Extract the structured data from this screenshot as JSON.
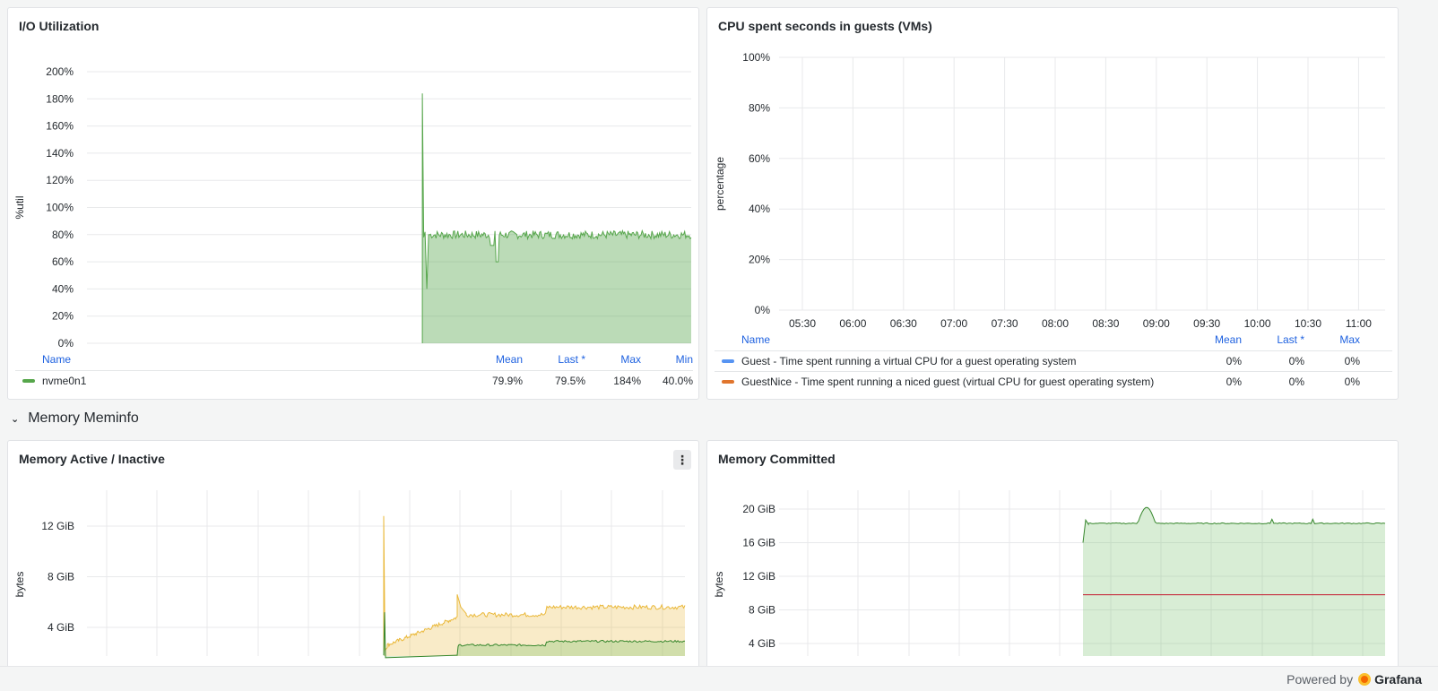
{
  "panels": {
    "io": {
      "title": "I/O Utilization",
      "ylabel": "%util",
      "color": "#56a64b",
      "legend": {
        "headers": {
          "name": "Name",
          "mean": "Mean",
          "last": "Last *",
          "max": "Max",
          "min": "Min"
        },
        "rows": [
          {
            "name": "nvme0n1",
            "mean": "79.9%",
            "last": "79.5%",
            "max": "184%",
            "min": "40.0%"
          }
        ]
      }
    },
    "cpu": {
      "title": "CPU spent seconds in guests (VMs)",
      "ylabel": "percentage",
      "legend": {
        "headers": {
          "name": "Name",
          "mean": "Mean",
          "last": "Last *",
          "max": "Max"
        },
        "rows": [
          {
            "name": "Guest - Time spent running a virtual CPU for a guest operating system",
            "mean": "0%",
            "last": "0%",
            "max": "0%",
            "color": "#5794f2"
          },
          {
            "name": "GuestNice - Time spent running a niced guest (virtual CPU for guest operating system)",
            "mean": "0%",
            "last": "0%",
            "max": "0%",
            "color": "#e0752d"
          }
        ]
      }
    },
    "mem_active": {
      "title": "Memory Active / Inactive",
      "ylabel": "bytes",
      "menu_glyph": "⋮"
    },
    "mem_committed": {
      "title": "Memory Committed",
      "ylabel": "bytes"
    }
  },
  "row": {
    "title": "Memory Meminfo",
    "chevron": "⌄"
  },
  "footer": {
    "powered": "Powered by",
    "brand": "Grafana"
  },
  "chart_data": [
    {
      "type": "area",
      "title": "I/O Utilization",
      "ylabel": "%util",
      "ylim": [
        0,
        200
      ],
      "yticks": [
        "0%",
        "20%",
        "40%",
        "60%",
        "80%",
        "100%",
        "120%",
        "140%",
        "160%",
        "180%",
        "200%"
      ],
      "series": [
        {
          "name": "nvme0n1",
          "color": "#56a64b",
          "start_fraction": 0.555,
          "spike": 184,
          "min": 40,
          "mean": 79.9,
          "last": 79.5
        }
      ]
    },
    {
      "type": "line",
      "title": "CPU spent seconds in guests (VMs)",
      "ylabel": "percentage",
      "ylim": [
        0,
        100
      ],
      "yticks": [
        "0%",
        "20%",
        "40%",
        "60%",
        "80%",
        "100%"
      ],
      "xticks": [
        "05:30",
        "06:00",
        "06:30",
        "07:00",
        "07:30",
        "08:00",
        "08:30",
        "09:00",
        "09:30",
        "10:00",
        "10:30",
        "11:00"
      ],
      "series": [
        {
          "name": "Guest - Time spent running a virtual CPU for a guest operating system",
          "color": "#5794f2",
          "values": [
            0
          ]
        },
        {
          "name": "GuestNice - Time spent running a niced guest (virtual CPU for guest operating system)",
          "color": "#e0752d",
          "values": [
            0
          ]
        }
      ]
    },
    {
      "type": "area",
      "title": "Memory Active / Inactive",
      "ylabel": "bytes",
      "yticks": [
        "4 GiB",
        "8 GiB",
        "12 GiB"
      ],
      "series": [
        {
          "color": "#eab839",
          "start_fraction": 0.55,
          "spike": 12.8,
          "level": 5.5
        },
        {
          "color": "#73bf69",
          "start_fraction": 0.55,
          "level": 2.8
        }
      ]
    },
    {
      "type": "area",
      "title": "Memory Committed",
      "ylabel": "bytes",
      "yticks": [
        "4 GiB",
        "8 GiB",
        "12 GiB",
        "16 GiB",
        "20 GiB"
      ],
      "series": [
        {
          "color": "#73bf69",
          "start_fraction": 0.55,
          "level": 18.3
        },
        {
          "color": "#c4162a",
          "start_fraction": 0.55,
          "level": 9.8
        }
      ]
    }
  ]
}
